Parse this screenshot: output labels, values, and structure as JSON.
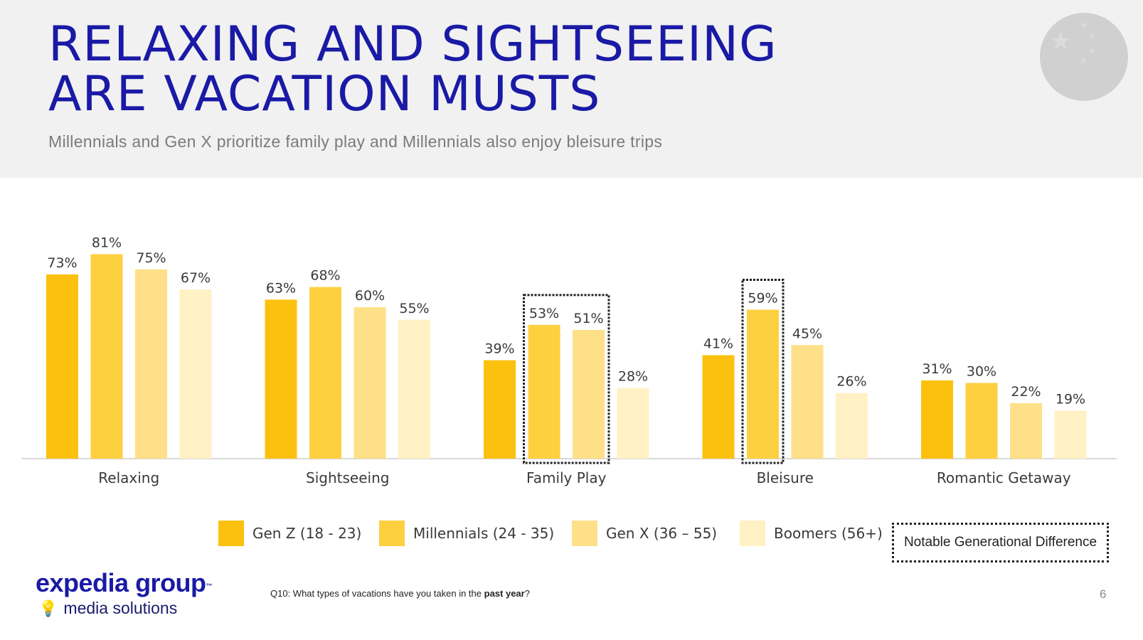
{
  "header": {
    "title_line1": "RELAXING AND SIGHTSEEING",
    "title_line2": "ARE VACATION MUSTS",
    "subtitle": "Millennials  and Gen X prioritize  family play and Millennials  also enjoy bleisure trips"
  },
  "flag_icon": "china-flag-icon",
  "chart_data": {
    "type": "bar",
    "categories": [
      "Relaxing",
      "Sightseeing",
      "Family Play",
      "Bleisure",
      "Romantic Getaway"
    ],
    "series": [
      {
        "name": "Gen Z (18 - 23)",
        "color": "#fcc10f",
        "values": [
          73,
          63,
          39,
          41,
          31
        ]
      },
      {
        "name": "Millennials (24 - 35)",
        "color": "#fdd040",
        "values": [
          81,
          68,
          53,
          59,
          30
        ]
      },
      {
        "name": "Gen X (36 – 55)",
        "color": "#fee088",
        "values": [
          75,
          60,
          51,
          45,
          22
        ]
      },
      {
        "name": "Boomers (56+)",
        "color": "#fff1c4",
        "values": [
          67,
          55,
          28,
          26,
          19
        ]
      }
    ],
    "value_suffix": "%",
    "ylim": [
      0,
      100
    ],
    "highlights": [
      {
        "category": "Family Play",
        "series": [
          "Millennials (24 - 35)",
          "Gen X (36 – 55)"
        ]
      },
      {
        "category": "Bleisure",
        "series": [
          "Millennials (24 - 35)"
        ]
      }
    ],
    "highlight_legend": "Notable Generational  Difference",
    "axis_color": "#d9d9d9"
  },
  "footer": {
    "logo_main": "expedia group",
    "logo_tm": "™",
    "logo_sub": "media solutions",
    "footnote_prefix": "Q10: What types of vacations have you taken in the ",
    "footnote_bold": "past year",
    "footnote_suffix": "?",
    "page_number": "6"
  }
}
